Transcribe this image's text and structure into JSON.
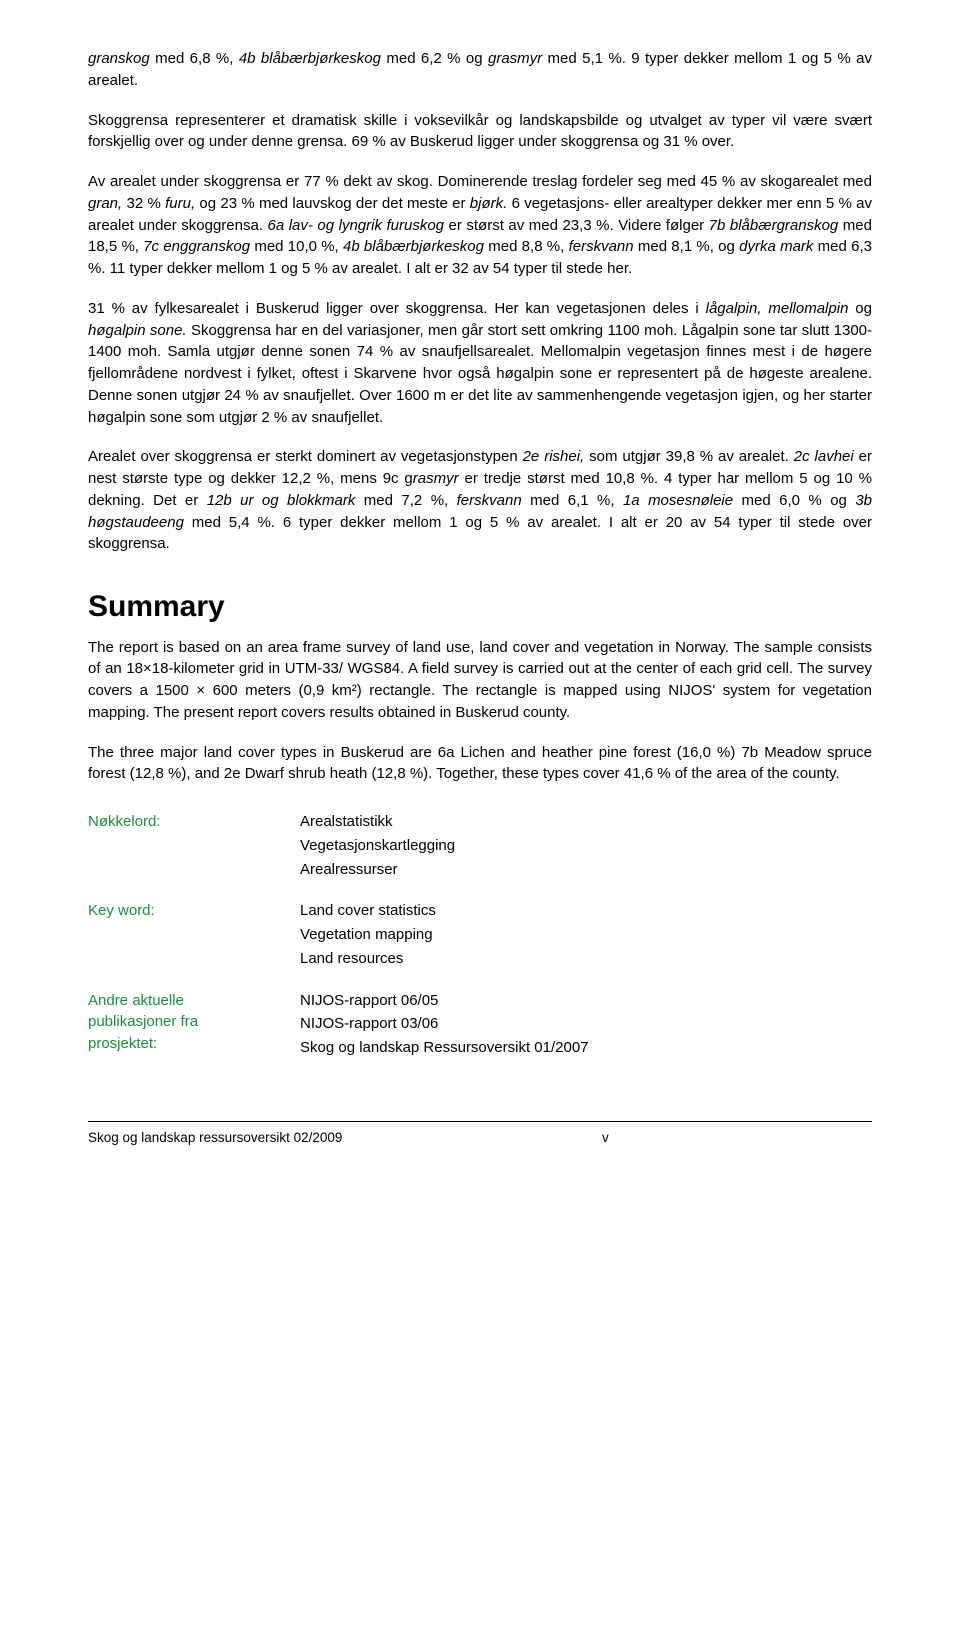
{
  "paragraphs": {
    "p1_part1": "granskog",
    "p1_part2": " med 6,8 %, ",
    "p1_part3": "4b blåbærbjørkeskog",
    "p1_part4": " med 6,2 % og ",
    "p1_part5": "grasmyr",
    "p1_part6": " med 5,1 %. 9 typer dekker mellom 1 og 5 % av arealet.",
    "p2": "Skoggrensa representerer et dramatisk skille i voksevilkår og landskapsbilde og utvalget av typer vil være svært forskjellig over og under denne grensa. 69 % av Buskerud ligger under skoggrensa og 31 % over.",
    "p3_a": "Av arealet under skoggrensa er 77 % dekt av skog. Dominerende treslag fordeler seg med 45 % av skogarealet med ",
    "p3_b": "gran,",
    "p3_c": " 32 % ",
    "p3_d": "furu,",
    "p3_e": " og 23 % med lauvskog der det meste er ",
    "p3_f": "bjørk.",
    "p3_g": " 6 vegetasjons- eller arealtyper dekker mer enn 5 % av arealet under skoggrensa. ",
    "p3_h": "6a lav- og lyngrik furuskog",
    "p3_i": " er størst av med 23,3 %. Videre følger ",
    "p3_j": "7b blåbærgranskog",
    "p3_k": " med 18,5 %, ",
    "p3_l": "7c enggranskog",
    "p3_m": " med 10,0 %, ",
    "p3_n": "4b blåbærbjørkeskog",
    "p3_o": " med 8,8 %, ",
    "p3_p": "ferskvann",
    "p3_q": " med 8,1 %, og ",
    "p3_r": "dyrka mark",
    "p3_s": " med 6,3 %. 11 typer dekker mellom 1 og 5 % av arealet. I alt er 32 av 54 typer til stede her.",
    "p4_a": "31 % av fylkesarealet i Buskerud ligger over skoggrensa. Her kan vegetasjonen deles i ",
    "p4_b": "lågalpin, mellomalpin",
    "p4_c": " og ",
    "p4_d": "høgalpin sone.",
    "p4_e": " Skoggrensa har en del variasjoner, men går stort sett omkring 1100 moh. Lågalpin sone tar slutt 1300-1400 moh. Samla utgjør denne sonen 74 % av snaufjellsarealet. Mellomalpin vegetasjon finnes mest i de høgere fjellområdene nordvest i fylket, oftest i Skarvene hvor også høgalpin sone er representert på de høgeste arealene. Denne sonen utgjør 24 % av snaufjellet. Over 1600 m er det lite av sammenhengende vegetasjon igjen, og her starter høgalpin sone som utgjør 2 % av snaufjellet.",
    "p5_a": "Arealet over skoggrensa er sterkt dominert av vegetasjonstypen ",
    "p5_b": "2e rishei,",
    "p5_c": " som utgjør 39,8 % av arealet. ",
    "p5_d": "2c lavhei",
    "p5_e": " er nest største type og dekker 12,2 %, mens 9c g",
    "p5_f": "rasmyr",
    "p5_g": " er tredje størst med 10,8 %.  4 typer har mellom 5 og 10 % dekning. Det er ",
    "p5_h": "12b ur og blokkmark",
    "p5_i": " med 7,2 %, ",
    "p5_j": "ferskvann",
    "p5_k": " med 6,1 %, ",
    "p5_l": "1a mosesnøleie",
    "p5_m": " med 6,0 % og ",
    "p5_n": "3b høgstaudeeng",
    "p5_o": " med 5,4 %. 6 typer dekker mellom 1 og 5 % av arealet. I alt er 20 av 54 typer til stede over skoggrensa."
  },
  "summary": {
    "heading": "Summary",
    "p1": "The report is based on an area frame survey of land use, land cover and vegetation in Norway. The sample consists of an 18×18-kilometer grid in UTM-33/ WGS84. A field survey is carried out at the center of each grid cell. The survey covers a 1500 × 600 meters (0,9 km²) rectangle. The rectangle is mapped using NIJOS' system for vegetation mapping. The present report covers results obtained in Buskerud county.",
    "p2": "The three major land cover types in Buskerud are 6a Lichen and heather pine forest (16,0 %) 7b Meadow spruce forest (12,8 %), and 2e Dwarf shrub heath (12,8 %). Together, these types cover 41,6 % of the area of the county."
  },
  "keywords": {
    "label1": "Nøkkelord:",
    "values1": [
      "Arealstatistikk",
      "Vegetasjonskartlegging",
      "Arealressurser"
    ],
    "label2": "Key word:",
    "values2": [
      "Land cover statistics",
      "Vegetation mapping",
      "Land resources"
    ],
    "label3_line1": "Andre aktuelle",
    "label3_line2": "publikasjoner fra",
    "label3_line3": "prosjektet:",
    "values3": [
      "NIJOS-rapport 06/05",
      "NIJOS-rapport 03/06",
      "Skog og landskap Ressursoversikt 01/2007"
    ]
  },
  "footer": {
    "left": "Skog og landskap ressursoversikt 02/2009",
    "page": "v"
  },
  "colors": {
    "text": "#000000",
    "keyword_label": "#1a8f3a",
    "background": "#ffffff"
  }
}
